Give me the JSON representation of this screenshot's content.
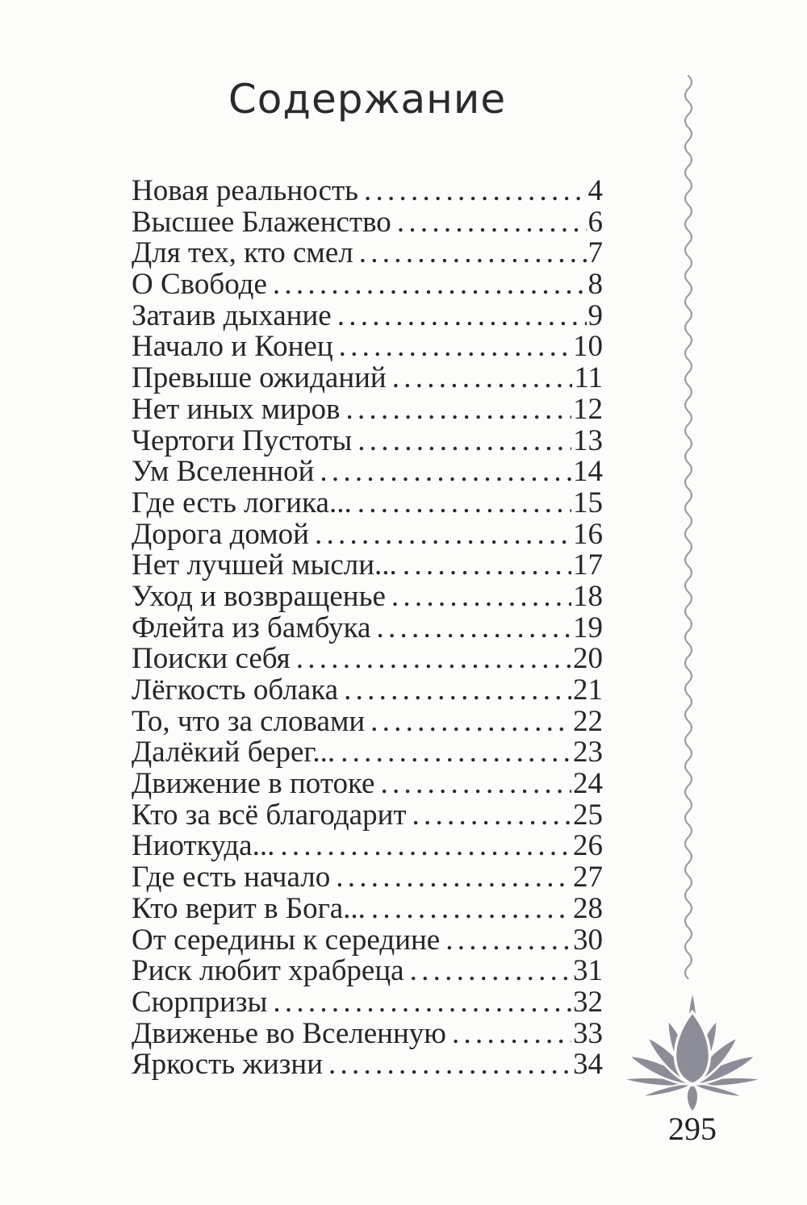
{
  "page": {
    "title": "Содержание",
    "page_number": "295"
  },
  "toc": {
    "entries": [
      {
        "title": "Новая реальность",
        "page": "4"
      },
      {
        "title": "Высшее Блаженство",
        "page": "6"
      },
      {
        "title": "Для тех, кто смел",
        "page": "7"
      },
      {
        "title": "О Свободе",
        "page": "8"
      },
      {
        "title": "Затаив дыхание",
        "page": "9"
      },
      {
        "title": "Начало и Конец",
        "page": "10"
      },
      {
        "title": "Превыше ожиданий",
        "page": "11"
      },
      {
        "title": "Нет иных миров",
        "page": "12"
      },
      {
        "title": "Чертоги Пустоты",
        "page": "13"
      },
      {
        "title": "Ум Вселенной",
        "page": "14"
      },
      {
        "title": "Где есть логика...",
        "page": "15"
      },
      {
        "title": "Дорога домой",
        "page": "16"
      },
      {
        "title": "Нет лучшей мысли...",
        "page": "17"
      },
      {
        "title": "Уход и возвращенье",
        "page": "18"
      },
      {
        "title": "Флейта из бамбука",
        "page": "19"
      },
      {
        "title": "Поиски себя",
        "page": "20"
      },
      {
        "title": "Лёгкость облака",
        "page": "21"
      },
      {
        "title": "То, что за словами",
        "page": "22"
      },
      {
        "title": "Далёкий берег...",
        "page": "23"
      },
      {
        "title": "Движение в потоке",
        "page": "24"
      },
      {
        "title": "Кто за всё благодарит",
        "page": "25"
      },
      {
        "title": "Ниоткуда...",
        "page": "26"
      },
      {
        "title": "Где есть начало",
        "page": "27"
      },
      {
        "title": "Кто верит в Бога...",
        "page": "28"
      },
      {
        "title": "От середины к середине",
        "page": "30"
      },
      {
        "title": "Риск любит храбреца",
        "page": "31"
      },
      {
        "title": "Сюрпризы",
        "page": "32"
      },
      {
        "title": "Движенье во Вселенную",
        "page": "33"
      },
      {
        "title": "Яркость жизни",
        "page": "34"
      }
    ]
  },
  "decorations": {
    "lotus_icon": "lotus-flower",
    "wavy_line_icon": "vertical-wavy-line",
    "lotus_color": "#8d8d99",
    "wavy_line_color": "#9b9ba6",
    "text_color": "#26262a",
    "background_color": "#fcfcfa"
  }
}
